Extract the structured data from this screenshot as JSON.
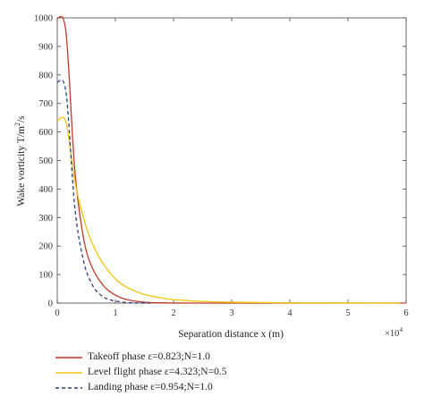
{
  "chart_data": {
    "type": "line",
    "xlabel": "Separation distance x (m)",
    "ylabel_main": "Wake vorticity T/m",
    "ylabel_sup": "2",
    "ylabel_tail": "/s",
    "x_multiplier_base": "×10",
    "x_multiplier_exp": "4",
    "xlim": [
      0,
      6
    ],
    "ylim": [
      0,
      1000
    ],
    "x_ticks": [
      "0",
      "1",
      "2",
      "3",
      "4",
      "5",
      "6"
    ],
    "y_ticks": [
      "0",
      "100",
      "200",
      "300",
      "400",
      "500",
      "600",
      "700",
      "800",
      "900",
      "1000"
    ],
    "grid": false,
    "legend_position": "bottom",
    "series": [
      {
        "name": "Takeoff phase ε=0.823;N=1.0",
        "color": "#c0392b",
        "dash": "solid",
        "x": [
          0,
          0.15,
          0.3,
          0.45,
          0.6,
          0.8,
          1.0,
          1.2,
          1.5,
          1.8,
          2.5,
          6.0
        ],
        "y": [
          1000,
          950,
          470,
          230,
          125,
          60,
          28,
          12,
          3,
          1,
          0,
          0
        ]
      },
      {
        "name": "Level flight phase ε=4.323;N=0.5",
        "color": "#f1c40f",
        "dash": "solid",
        "x": [
          0,
          0.15,
          0.3,
          0.45,
          0.6,
          0.8,
          1.0,
          1.2,
          1.5,
          1.8,
          2.0,
          2.5,
          3.0,
          4.0,
          5.0,
          5.9
        ],
        "y": [
          640,
          635,
          430,
          300,
          210,
          135,
          85,
          55,
          30,
          18,
          12,
          6,
          3,
          1,
          0.5,
          0
        ]
      },
      {
        "name": "Landing phase ε=0.954;N=1.0",
        "color": "#2c3e7a",
        "dash": "dashed",
        "x": [
          0,
          0.15,
          0.3,
          0.45,
          0.6,
          0.75,
          0.9,
          1.1,
          1.3,
          1.6
        ],
        "y": [
          775,
          740,
          340,
          150,
          65,
          28,
          12,
          4,
          1,
          0
        ]
      }
    ]
  }
}
